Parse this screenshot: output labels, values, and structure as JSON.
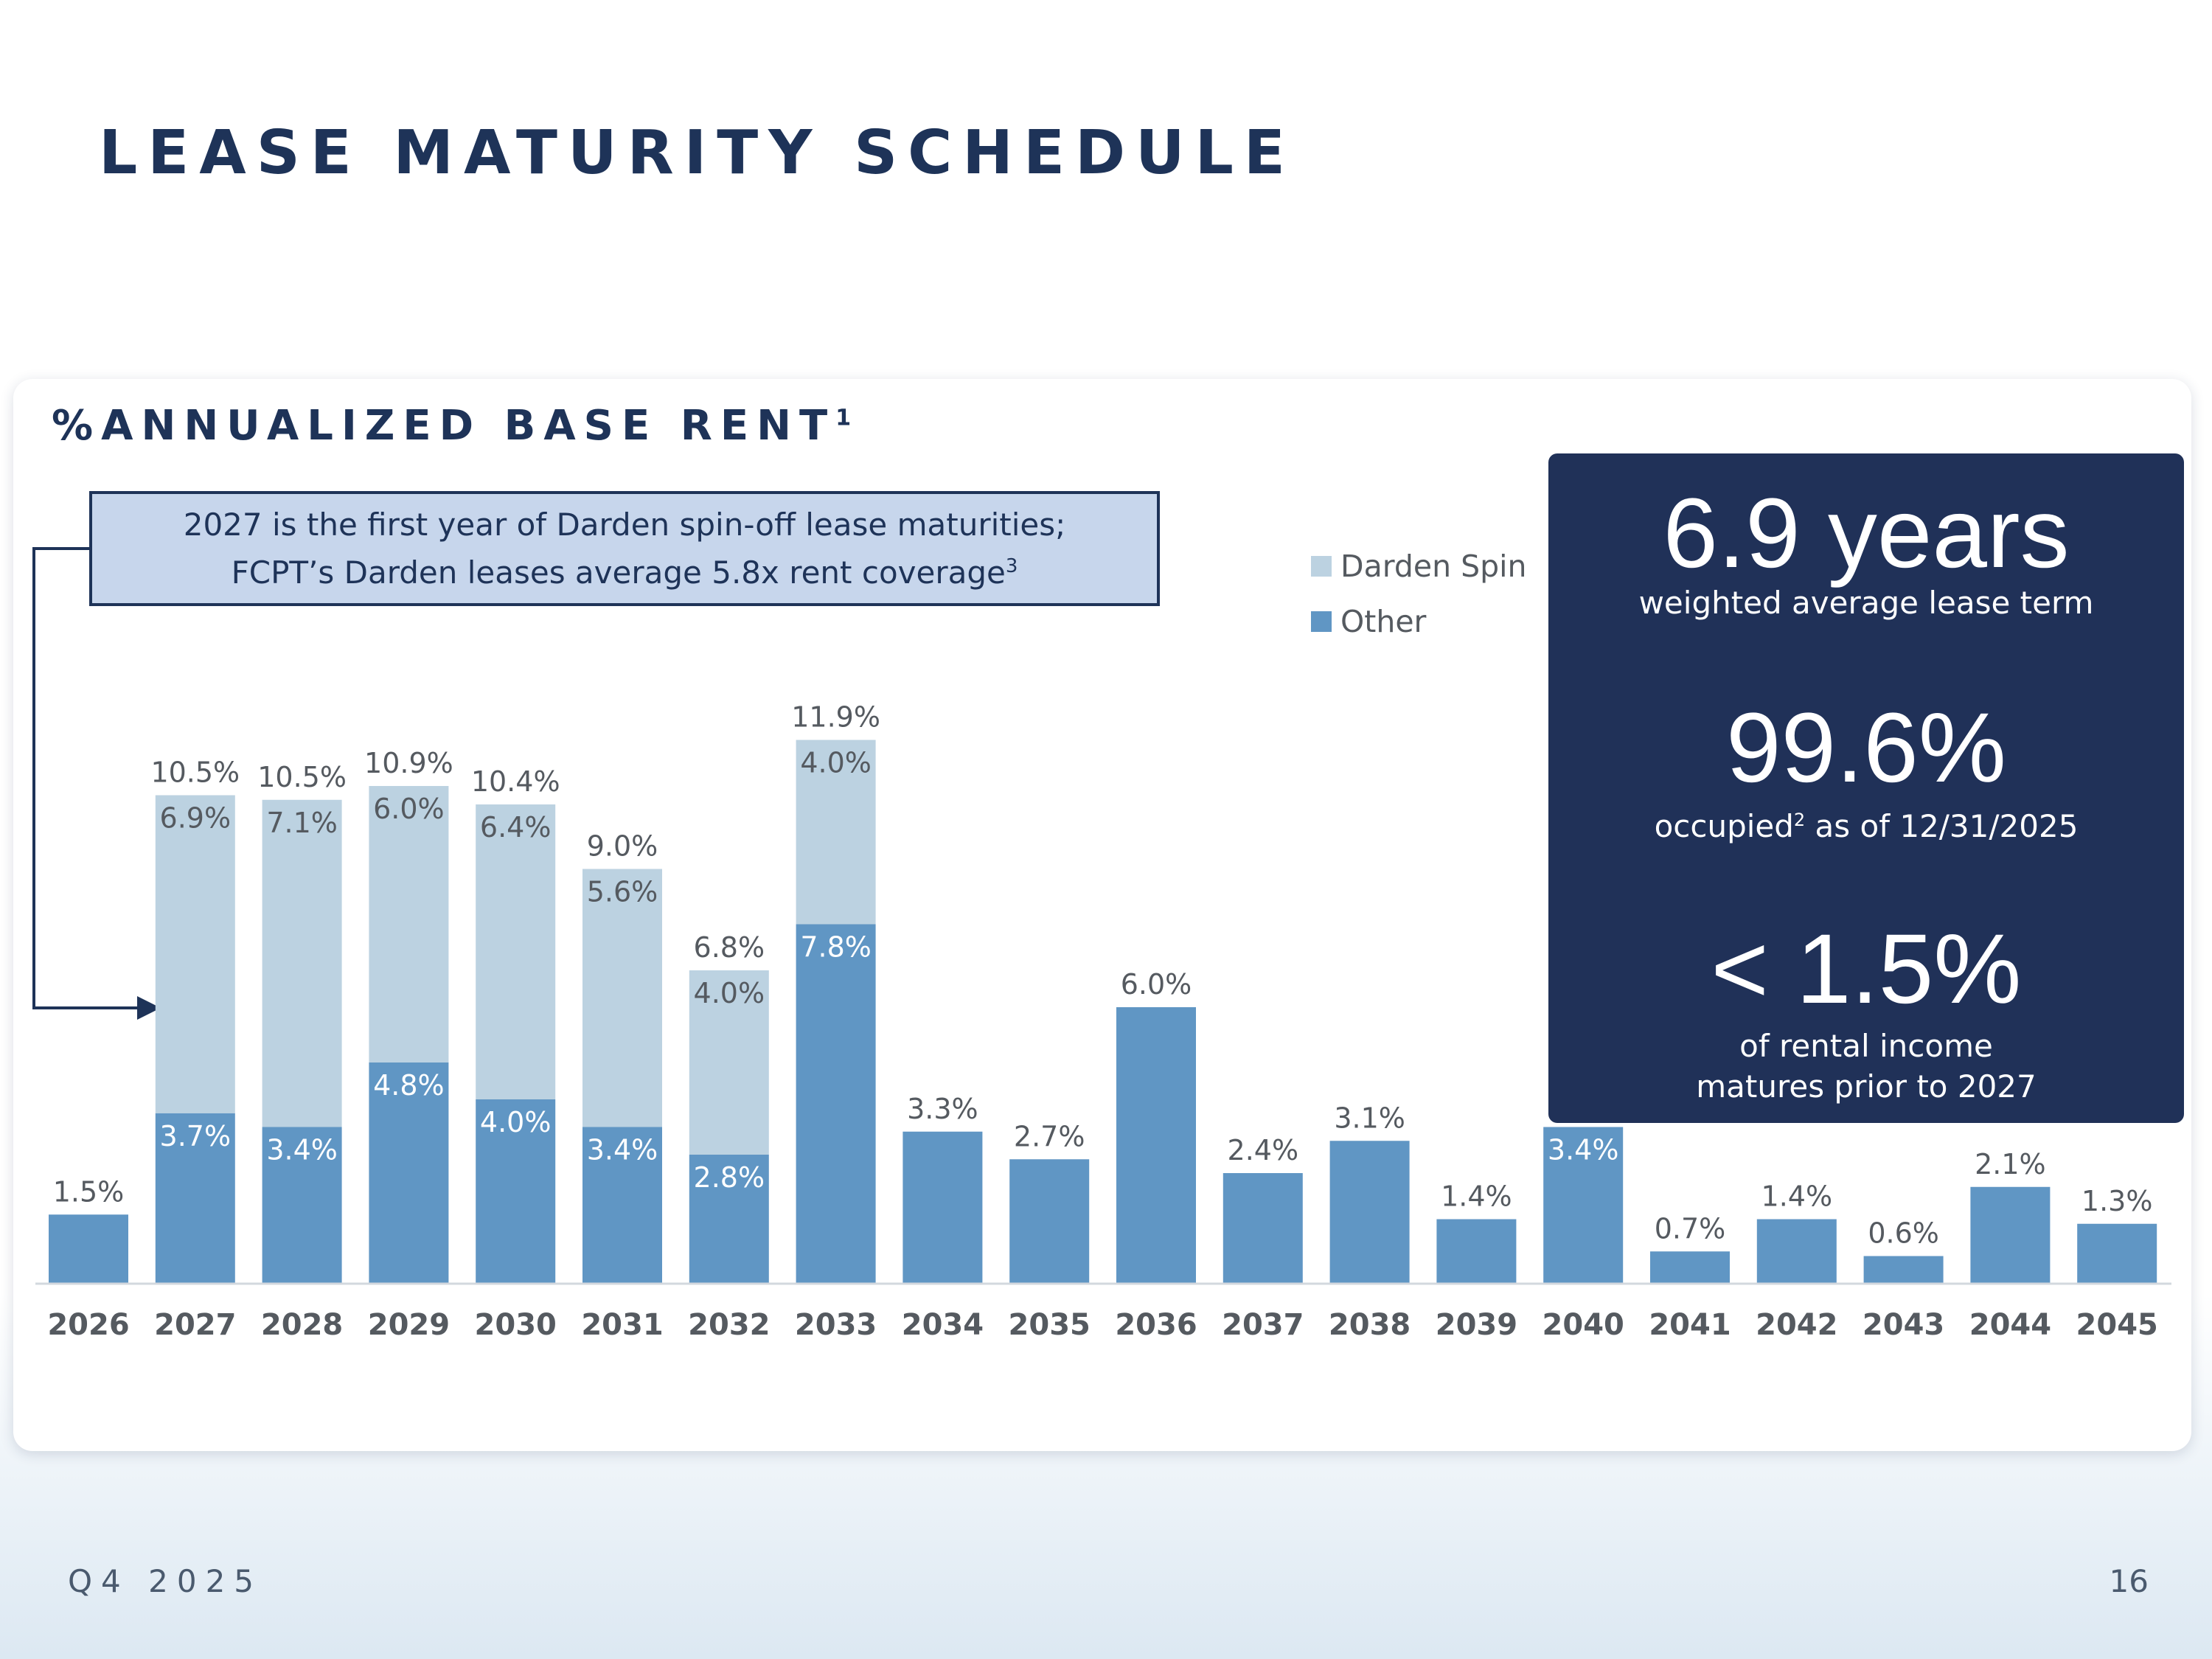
{
  "title": "LEASE MATURITY SCHEDULE",
  "card": {
    "title": "%ANNUALIZED BASE RENT",
    "title_footnote": "1"
  },
  "callout": {
    "line1": "2027 is the first year of Darden spin-off lease maturities;",
    "line2": "FCPT’s Darden leases average 5.8x rent coverage",
    "footnote": "3"
  },
  "stats": {
    "term_value": "6.9 years",
    "term_label": "weighted average lease term",
    "occupied_value": "99.6%",
    "occupied_label_pre": "occupied",
    "occupied_footnote": "2",
    "occupied_label_post": " as of 12/31/2025",
    "prior_value": "< 1.5%",
    "prior_label_1": "of rental income",
    "prior_label_2": "matures prior to 2027"
  },
  "footer": {
    "period": "Q4 2025",
    "page": "16"
  },
  "colors": {
    "darden": "#bcd2e1",
    "other": "#6096c4",
    "navy": "#203158"
  },
  "chart_data": {
    "type": "bar",
    "stacked": true,
    "categories": [
      "2026",
      "2027",
      "2028",
      "2029",
      "2030",
      "2031",
      "2032",
      "2033",
      "2034",
      "2035",
      "2036",
      "2037",
      "2038",
      "2039",
      "2040",
      "2041",
      "2042",
      "2043",
      "2044",
      "2045"
    ],
    "series": [
      {
        "name": "Other",
        "values": [
          1.5,
          3.7,
          3.4,
          4.8,
          4.0,
          3.4,
          2.8,
          7.8,
          3.3,
          2.7,
          6.0,
          2.4,
          3.1,
          1.4,
          3.4,
          0.7,
          1.4,
          0.6,
          2.1,
          1.3
        ]
      },
      {
        "name": "Darden Spin",
        "values": [
          0,
          6.9,
          7.1,
          6.0,
          6.4,
          5.6,
          4.0,
          4.0,
          0,
          0,
          0,
          0,
          0,
          0,
          0,
          0,
          0,
          0,
          0,
          0
        ]
      }
    ],
    "totals": [
      1.5,
      10.5,
      10.5,
      10.9,
      10.4,
      9.0,
      6.8,
      11.9,
      3.3,
      2.7,
      6.0,
      2.4,
      3.1,
      1.4,
      3.4,
      0.7,
      1.4,
      0.6,
      2.1,
      1.3
    ],
    "other_labels": [
      "1.5%",
      "3.7%",
      "3.4%",
      "4.8%",
      "4.0%",
      "3.4%",
      "2.8%",
      "7.8%",
      "3.3%",
      "2.7%",
      "6.0%",
      "2.4%",
      "3.1%",
      "1.4%",
      "3.4%",
      "0.7%",
      "1.4%",
      "0.6%",
      "2.1%",
      "1.3%"
    ],
    "darden_labels": [
      "",
      "6.9%",
      "7.1%",
      "6.0%",
      "6.4%",
      "5.6%",
      "4.0%",
      "4.0%",
      "",
      "",
      "",
      "",
      "",
      "",
      "",
      "",
      "",
      "",
      "",
      ""
    ],
    "total_labels": [
      "",
      "10.5%",
      "10.5%",
      "10.9%",
      "10.4%",
      "9.0%",
      "6.8%",
      "11.9%",
      "",
      "",
      "",
      "",
      "",
      "",
      "",
      "",
      "",
      "",
      "",
      ""
    ],
    "legend": [
      "Darden Spin",
      "Other"
    ],
    "ylabel": "% Annualized Base Rent",
    "ylim": [
      0,
      12
    ]
  }
}
